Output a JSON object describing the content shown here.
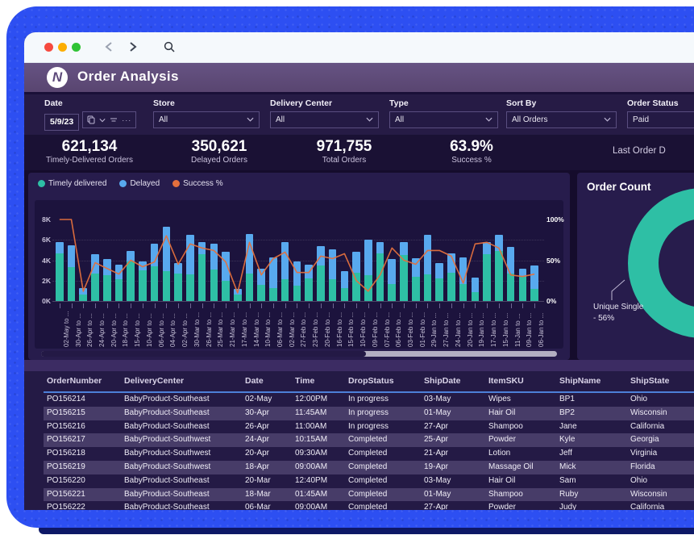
{
  "chrome": {
    "window_controls": [
      "close",
      "minimize",
      "maximize"
    ]
  },
  "header": {
    "logo_letter": "N",
    "title": "Order Analysis"
  },
  "filters": [
    {
      "id": "date",
      "label": "Date",
      "value": "5/9/23"
    },
    {
      "id": "store",
      "label": "Store",
      "value": "All"
    },
    {
      "id": "delivery_center",
      "label": "Delivery Center",
      "value": "All"
    },
    {
      "id": "type",
      "label": "Type",
      "value": "All"
    },
    {
      "id": "sort_by",
      "label": "Sort By",
      "value": "All Orders"
    },
    {
      "id": "order_status",
      "label": "Order Status",
      "value": "Paid"
    }
  ],
  "kpis": [
    {
      "value": "621,134",
      "label": "Timely-Delivered Orders"
    },
    {
      "value": "350,621",
      "label": "Delayed Orders"
    },
    {
      "value": "971,755",
      "label": "Total Orders"
    },
    {
      "value": "63.9%",
      "label": "Success %"
    }
  ],
  "last_order_text": "Last Order D",
  "chart_data": [
    {
      "type": "bar",
      "subtype": "stacked-bars-with-line",
      "title": "",
      "legend_position": "top-left",
      "categories": [
        "02-May to ...",
        "30-Apr to ...",
        "26-Apr to ...",
        "24-Apr to ...",
        "20-Apr to ...",
        "18-Apr to ...",
        "15-Apr to ...",
        "10-Apr to ...",
        "06-Apr to ...",
        "04-Apr to ...",
        "02-Apr to ...",
        "30-Mar to ...",
        "26-Mar to ...",
        "25-Mar to ...",
        "21-Mar to ...",
        "17-Mar to ...",
        "14-Mar to ...",
        "10-Mar to ...",
        "06-Mar to ...",
        "02-Mar to ...",
        "27-Feb to ...",
        "23-Feb to ...",
        "20-Feb to ...",
        "16-Feb to ...",
        "15-Feb to ...",
        "10-Feb to ...",
        "09-Feb to ...",
        "07-Feb to ...",
        "06-Feb to ...",
        "03-Feb to ...",
        "01-Feb to ...",
        "29-Jan to ...",
        "27-Jan to ...",
        "24-Jan to ...",
        "20-Jan to ...",
        "19-Jan to ...",
        "17-Jan to ...",
        "15-Jan to ...",
        "11-Jan to ...",
        "09-Jan to ...",
        "06-Jan to ..."
      ],
      "series": [
        {
          "name": "Timely delivered",
          "color": "#2ebfa5",
          "unit": "K",
          "values": [
            4.7,
            3.3,
            0.6,
            2.7,
            2.5,
            2.1,
            3.9,
            3.0,
            3.4,
            2.9,
            2.7,
            2.6,
            4.6,
            3.1,
            2.0,
            0.6,
            2.7,
            1.6,
            1.3,
            2.1,
            1.5,
            2.2,
            3.5,
            2.1,
            1.3,
            2.8,
            2.5,
            4.7,
            1.7,
            4.5,
            2.4,
            2.6,
            2.2,
            2.8,
            1.7,
            0.9,
            4.6,
            4.9,
            2.7,
            2.4,
            1.2
          ]
        },
        {
          "name": "Delayed",
          "color": "#58a9ee",
          "unit": "K",
          "values": [
            1.1,
            2.2,
            0.7,
            1.9,
            1.6,
            1.5,
            1.0,
            0.9,
            2.2,
            4.4,
            1.0,
            3.9,
            1.2,
            2.5,
            2.8,
            0.6,
            3.9,
            1.6,
            3.0,
            3.7,
            2.4,
            1.4,
            1.9,
            3.0,
            1.6,
            2.0,
            3.5,
            1.1,
            2.4,
            1.3,
            1.8,
            3.9,
            1.5,
            1.9,
            2.6,
            1.4,
            1.2,
            1.6,
            2.6,
            0.8,
            2.3
          ]
        },
        {
          "name": "Success %",
          "color": "#e4703d",
          "type": "line",
          "axis": "right",
          "unit": "%",
          "values": [
            100,
            100,
            12,
            47,
            40,
            33,
            50,
            42,
            48,
            80,
            45,
            70,
            65,
            62,
            48,
            10,
            72,
            32,
            52,
            60,
            35,
            35,
            55,
            52,
            58,
            25,
            12,
            32,
            65,
            50,
            45,
            62,
            62,
            55,
            22,
            70,
            72,
            65,
            32,
            30,
            33
          ]
        }
      ],
      "y_left": {
        "ticks": [
          "0K",
          "2K",
          "4K",
          "6K",
          "8K"
        ],
        "min": 0,
        "max": 8
      },
      "y_right": {
        "ticks": [
          "0%",
          "50%",
          "100%"
        ],
        "min": 0,
        "max": 100
      },
      "grid": "dotted-horizontal",
      "scrollbar": {
        "thumb_fraction": 0.63
      }
    },
    {
      "type": "pie",
      "subtype": "donut",
      "title": "Order Count",
      "slices": [
        {
          "label": "Unique Single",
          "pct": 56,
          "color": "#2ebfa5"
        },
        {
          "label": "",
          "pct": 44,
          "color": "#58a9ee"
        }
      ],
      "annotation_line1": "Unique Single",
      "annotation_line2": "- 56%"
    }
  ],
  "table": {
    "columns": [
      "OrderNumber",
      "DeliveryCenter",
      "Date",
      "Time",
      "DropStatus",
      "ShipDate",
      "ItemSKU",
      "ShipName",
      "ShipState"
    ],
    "rows": [
      [
        "PO156214",
        "BabyProduct-Southeast",
        "02-May",
        "12:00PM",
        "In progress",
        "03-May",
        "Wipes",
        "BP1",
        "Ohio"
      ],
      [
        "PO156215",
        "BabyProduct-Southeast",
        "30-Apr",
        "11:45AM",
        "In progress",
        "01-May",
        "Hair Oil",
        "BP2",
        "Wisconsin"
      ],
      [
        "PO156216",
        "BabyProduct-Southeast",
        "26-Apr",
        "11:00AM",
        "In progress",
        "27-Apr",
        "Shampoo",
        "Jane",
        "California"
      ],
      [
        "PO156217",
        "BabyProduct-Southwest",
        "24-Apr",
        "10:15AM",
        "Completed",
        "25-Apr",
        "Powder",
        "Kyle",
        "Georgia"
      ],
      [
        "PO156218",
        "BabyProduct-Southwest",
        "20-Apr",
        "09:30AM",
        "Completed",
        "21-Apr",
        "Lotion",
        "Jeff",
        "Virginia"
      ],
      [
        "PO156219",
        "BabyProduct-Southwest",
        "18-Apr",
        "09:00AM",
        "Completed",
        "19-Apr",
        "Massage Oil",
        "Mick",
        "Florida"
      ],
      [
        "PO156220",
        "BabyProduct-Southeast",
        "20-Mar",
        "12:40PM",
        "Completed",
        "03-May",
        "Hair Oil",
        "Sam",
        "Ohio"
      ],
      [
        "PO156221",
        "BabyProduct-Southeast",
        "18-Mar",
        "01:45AM",
        "Completed",
        "01-May",
        "Shampoo",
        "Ruby",
        "Wisconsin"
      ],
      [
        "PO156222",
        "BabyProduct-Southeast",
        "06-Mar",
        "09:00AM",
        "Completed",
        "27-Apr",
        "Powder",
        "Judy",
        "California"
      ]
    ]
  },
  "colors": {
    "frame_blue": "#2d4ff2",
    "header_purple": "#5e4b7c",
    "dashboard_bg": "#150c2c",
    "panel_bg": "#271c4c",
    "teal": "#2ebfa5",
    "blue": "#58a9ee",
    "orange": "#e4703d",
    "table_stripe": "#473c68",
    "table_header_underline": "#4d7fd8"
  }
}
